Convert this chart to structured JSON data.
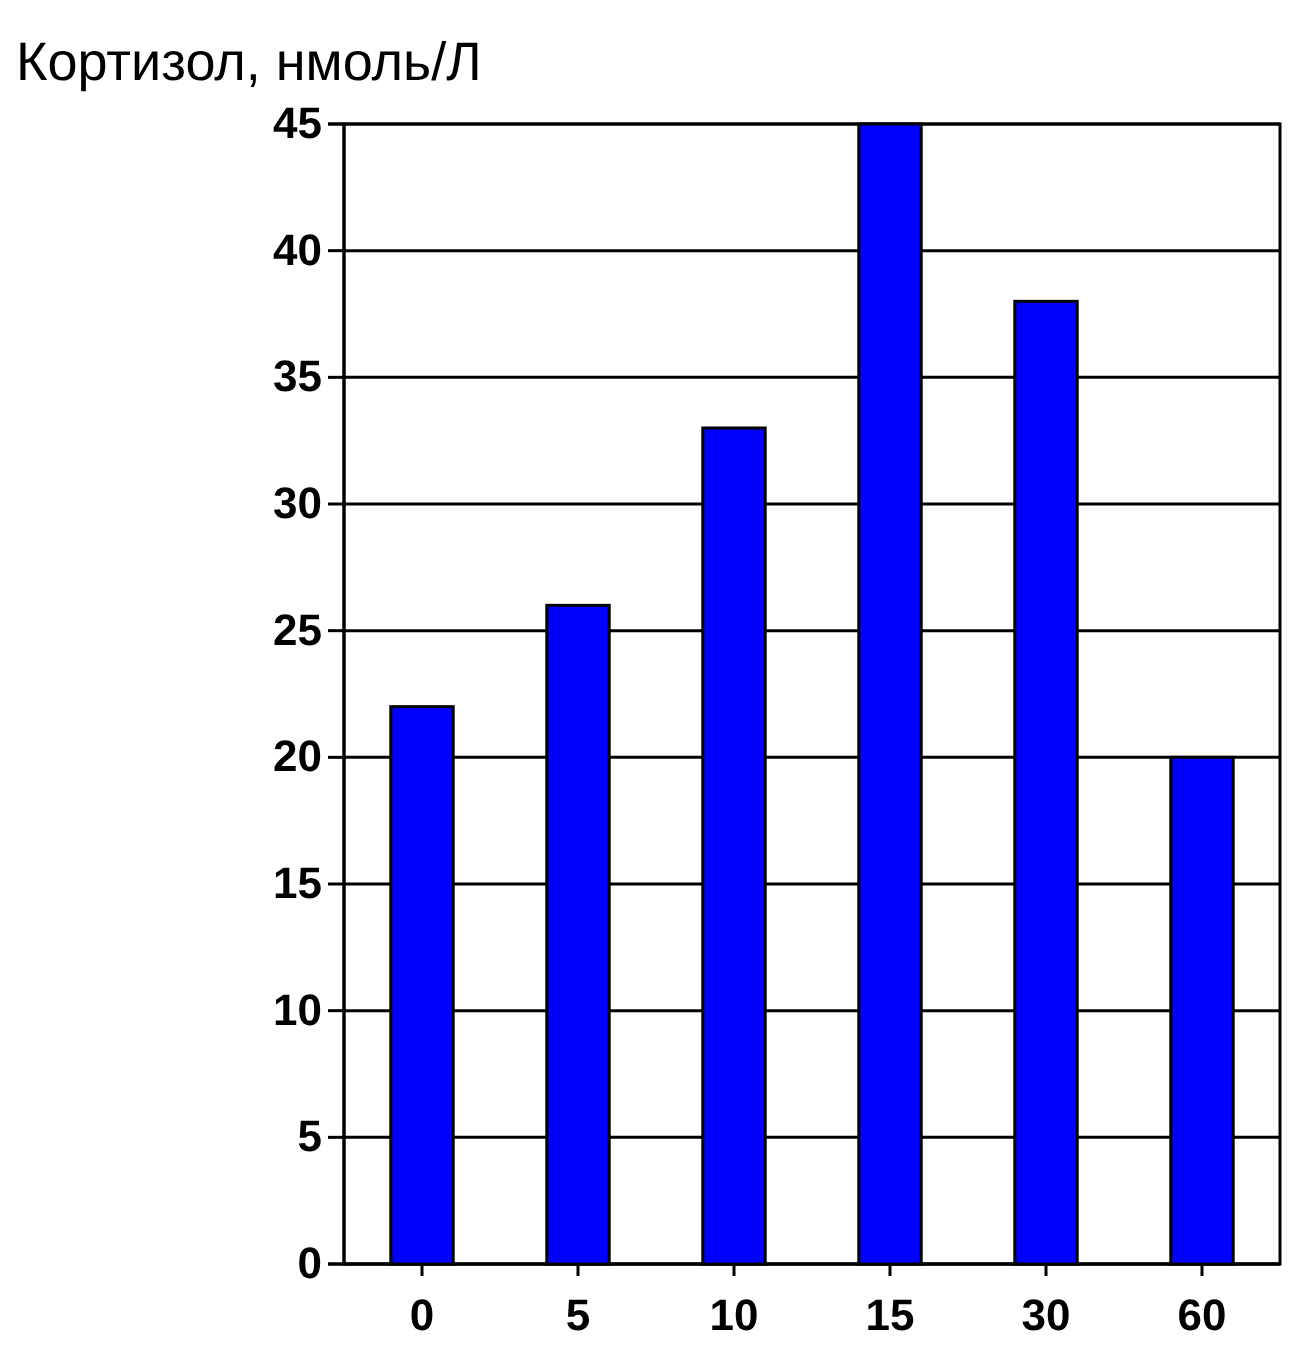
{
  "chart_data": {
    "type": "bar",
    "title": "Кортизол, нмоль/Л",
    "categories": [
      "0",
      "5",
      "10",
      "15",
      "30",
      "60"
    ],
    "values": [
      22,
      26,
      33,
      45,
      38,
      20
    ],
    "color": "#0000ff",
    "ylim": [
      0,
      45
    ],
    "yticks": [
      0,
      5,
      10,
      15,
      20,
      25,
      30,
      35,
      40,
      45
    ],
    "grid": "y"
  }
}
